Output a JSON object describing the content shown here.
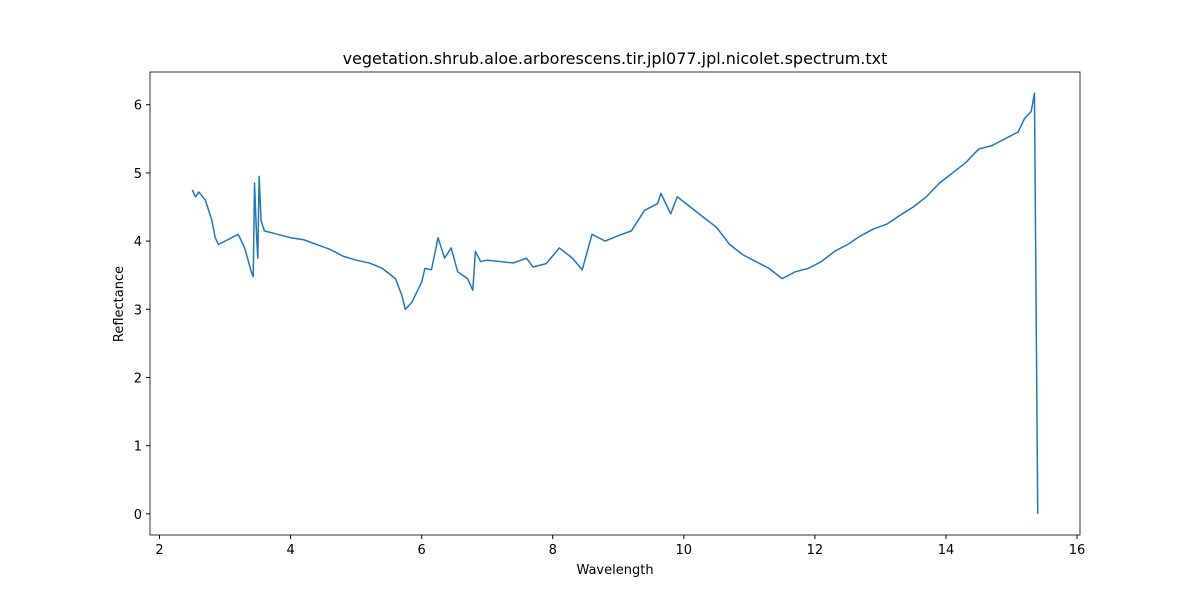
{
  "chart_data": {
    "type": "line",
    "title": "vegetation.shrub.aloe.arborescens.tir.jpl077.jpl.nicolet.spectrum.txt",
    "x_label": "Wavelength",
    "y_label": "Reflectance",
    "x": [
      2.5,
      2.55,
      2.6,
      2.7,
      2.8,
      2.85,
      2.9,
      3.0,
      3.1,
      3.2,
      3.3,
      3.4,
      3.43,
      3.45,
      3.48,
      3.5,
      3.52,
      3.55,
      3.6,
      3.8,
      4.0,
      4.2,
      4.4,
      4.6,
      4.8,
      5.0,
      5.2,
      5.4,
      5.6,
      5.7,
      5.75,
      5.85,
      6.0,
      6.05,
      6.15,
      6.25,
      6.35,
      6.45,
      6.55,
      6.7,
      6.78,
      6.82,
      6.9,
      7.0,
      7.2,
      7.4,
      7.6,
      7.7,
      7.9,
      8.1,
      8.3,
      8.45,
      8.6,
      8.8,
      9.0,
      9.2,
      9.4,
      9.6,
      9.65,
      9.8,
      9.9,
      10.1,
      10.3,
      10.5,
      10.7,
      10.9,
      11.1,
      11.3,
      11.5,
      11.7,
      11.9,
      12.1,
      12.3,
      12.5,
      12.7,
      12.9,
      13.1,
      13.3,
      13.5,
      13.7,
      13.9,
      14.1,
      14.3,
      14.5,
      14.7,
      14.9,
      15.1,
      15.2,
      15.3,
      15.35,
      15.4
    ],
    "series": [
      {
        "name": "Reflectance",
        "color": "#1f77b4",
        "values": [
          4.75,
          4.65,
          4.72,
          4.6,
          4.3,
          4.05,
          3.95,
          4.0,
          4.05,
          4.1,
          3.9,
          3.55,
          3.48,
          4.85,
          4.1,
          3.75,
          4.95,
          4.3,
          4.15,
          4.1,
          4.05,
          4.02,
          3.95,
          3.88,
          3.78,
          3.72,
          3.68,
          3.6,
          3.45,
          3.2,
          3.0,
          3.1,
          3.4,
          3.6,
          3.58,
          4.05,
          3.75,
          3.9,
          3.55,
          3.45,
          3.28,
          3.85,
          3.7,
          3.72,
          3.7,
          3.68,
          3.75,
          3.62,
          3.67,
          3.9,
          3.75,
          3.58,
          4.1,
          4.0,
          4.08,
          4.15,
          4.45,
          4.55,
          4.7,
          4.4,
          4.65,
          4.5,
          4.35,
          4.2,
          3.95,
          3.8,
          3.7,
          3.6,
          3.45,
          3.55,
          3.6,
          3.7,
          3.85,
          3.95,
          4.08,
          4.18,
          4.25,
          4.38,
          4.5,
          4.65,
          4.85,
          5.0,
          5.15,
          5.35,
          5.4,
          5.5,
          5.6,
          5.8,
          5.9,
          6.17,
          0.0
        ]
      }
    ],
    "xlim": [
      1.855,
      16.045
    ],
    "xticks": [
      2,
      4,
      6,
      8,
      10,
      12,
      14,
      16
    ],
    "ylim": [
      -0.31,
      6.48
    ],
    "yticks": [
      0,
      1,
      2,
      3,
      4,
      5,
      6
    ]
  }
}
